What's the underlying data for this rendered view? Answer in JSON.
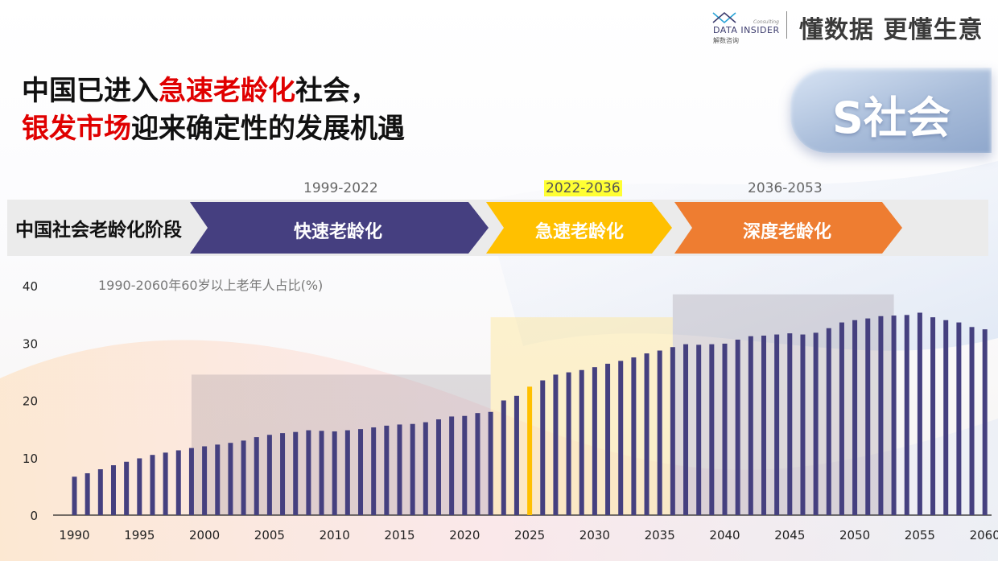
{
  "header": {
    "logo_name": "DATA INSIDER",
    "logo_cn": "解数咨询",
    "logo_sub": "Consulting",
    "slogan": "懂数据 更懂生意"
  },
  "title": {
    "line1_a": "中国已进入",
    "line1_b": "急速老龄化",
    "line1_c": "社会，",
    "line2_a": "银发市场",
    "line2_b": "迎来确定性的发展机遇"
  },
  "badge": "S社会",
  "stages": {
    "label": "中国社会老龄化阶段",
    "items": [
      {
        "name": "快速老龄化",
        "range": "1999-2022",
        "color": "#453f80"
      },
      {
        "name": "急速老龄化",
        "range": "2022-2036",
        "color": "#ffc000"
      },
      {
        "name": "深度老龄化",
        "range": "2036-2053",
        "color": "#ee7d31"
      }
    ]
  },
  "colors": {
    "bar": "#45407f",
    "highlight_bar": "#ffc000",
    "title_red": "#e00000"
  },
  "chart_data": {
    "type": "bar",
    "title": "1990-2060年60岁以上老年人占比(%)",
    "xlabel": "",
    "ylabel": "",
    "ylim": [
      0,
      40
    ],
    "yticks": [
      0,
      10,
      20,
      30,
      40
    ],
    "xticks": [
      1990,
      1995,
      2000,
      2005,
      2010,
      2015,
      2020,
      2025,
      2030,
      2035,
      2040,
      2045,
      2050,
      2055,
      2060
    ],
    "highlight_category": 2025,
    "shaded_ranges": [
      {
        "from": 1999,
        "to": 2022,
        "top": 24.5
      },
      {
        "from": 2022,
        "to": 2036,
        "top": 34.5
      },
      {
        "from": 2036,
        "to": 2053,
        "top": 38.5
      }
    ],
    "categories": [
      1990,
      1991,
      1992,
      1993,
      1994,
      1995,
      1996,
      1997,
      1998,
      1999,
      2000,
      2001,
      2002,
      2003,
      2004,
      2005,
      2006,
      2007,
      2008,
      2009,
      2010,
      2011,
      2012,
      2013,
      2014,
      2015,
      2016,
      2017,
      2018,
      2019,
      2020,
      2021,
      2022,
      2023,
      2024,
      2025,
      2026,
      2027,
      2028,
      2029,
      2030,
      2031,
      2032,
      2033,
      2034,
      2035,
      2036,
      2037,
      2038,
      2039,
      2040,
      2041,
      2042,
      2043,
      2044,
      2045,
      2046,
      2047,
      2048,
      2049,
      2050,
      2051,
      2052,
      2053,
      2054,
      2055,
      2056,
      2057,
      2058,
      2059,
      2060
    ],
    "values": [
      6.7,
      7.3,
      8.0,
      8.7,
      9.3,
      9.9,
      10.5,
      10.9,
      11.3,
      11.7,
      12.0,
      12.3,
      12.6,
      13.0,
      13.6,
      14.0,
      14.3,
      14.5,
      14.8,
      14.7,
      14.6,
      14.8,
      15.0,
      15.3,
      15.6,
      15.8,
      15.9,
      16.2,
      16.7,
      17.2,
      17.3,
      17.8,
      18.0,
      20.0,
      20.8,
      22.4,
      23.5,
      24.5,
      24.9,
      25.3,
      25.8,
      26.4,
      26.9,
      27.5,
      28.2,
      28.7,
      29.3,
      29.8,
      29.7,
      29.8,
      29.9,
      30.6,
      31.2,
      31.3,
      31.5,
      31.7,
      31.5,
      31.8,
      32.6,
      33.6,
      34.0,
      34.3,
      34.7,
      34.8,
      34.9,
      35.3,
      34.5,
      34.0,
      33.6,
      32.8,
      32.4
    ]
  }
}
